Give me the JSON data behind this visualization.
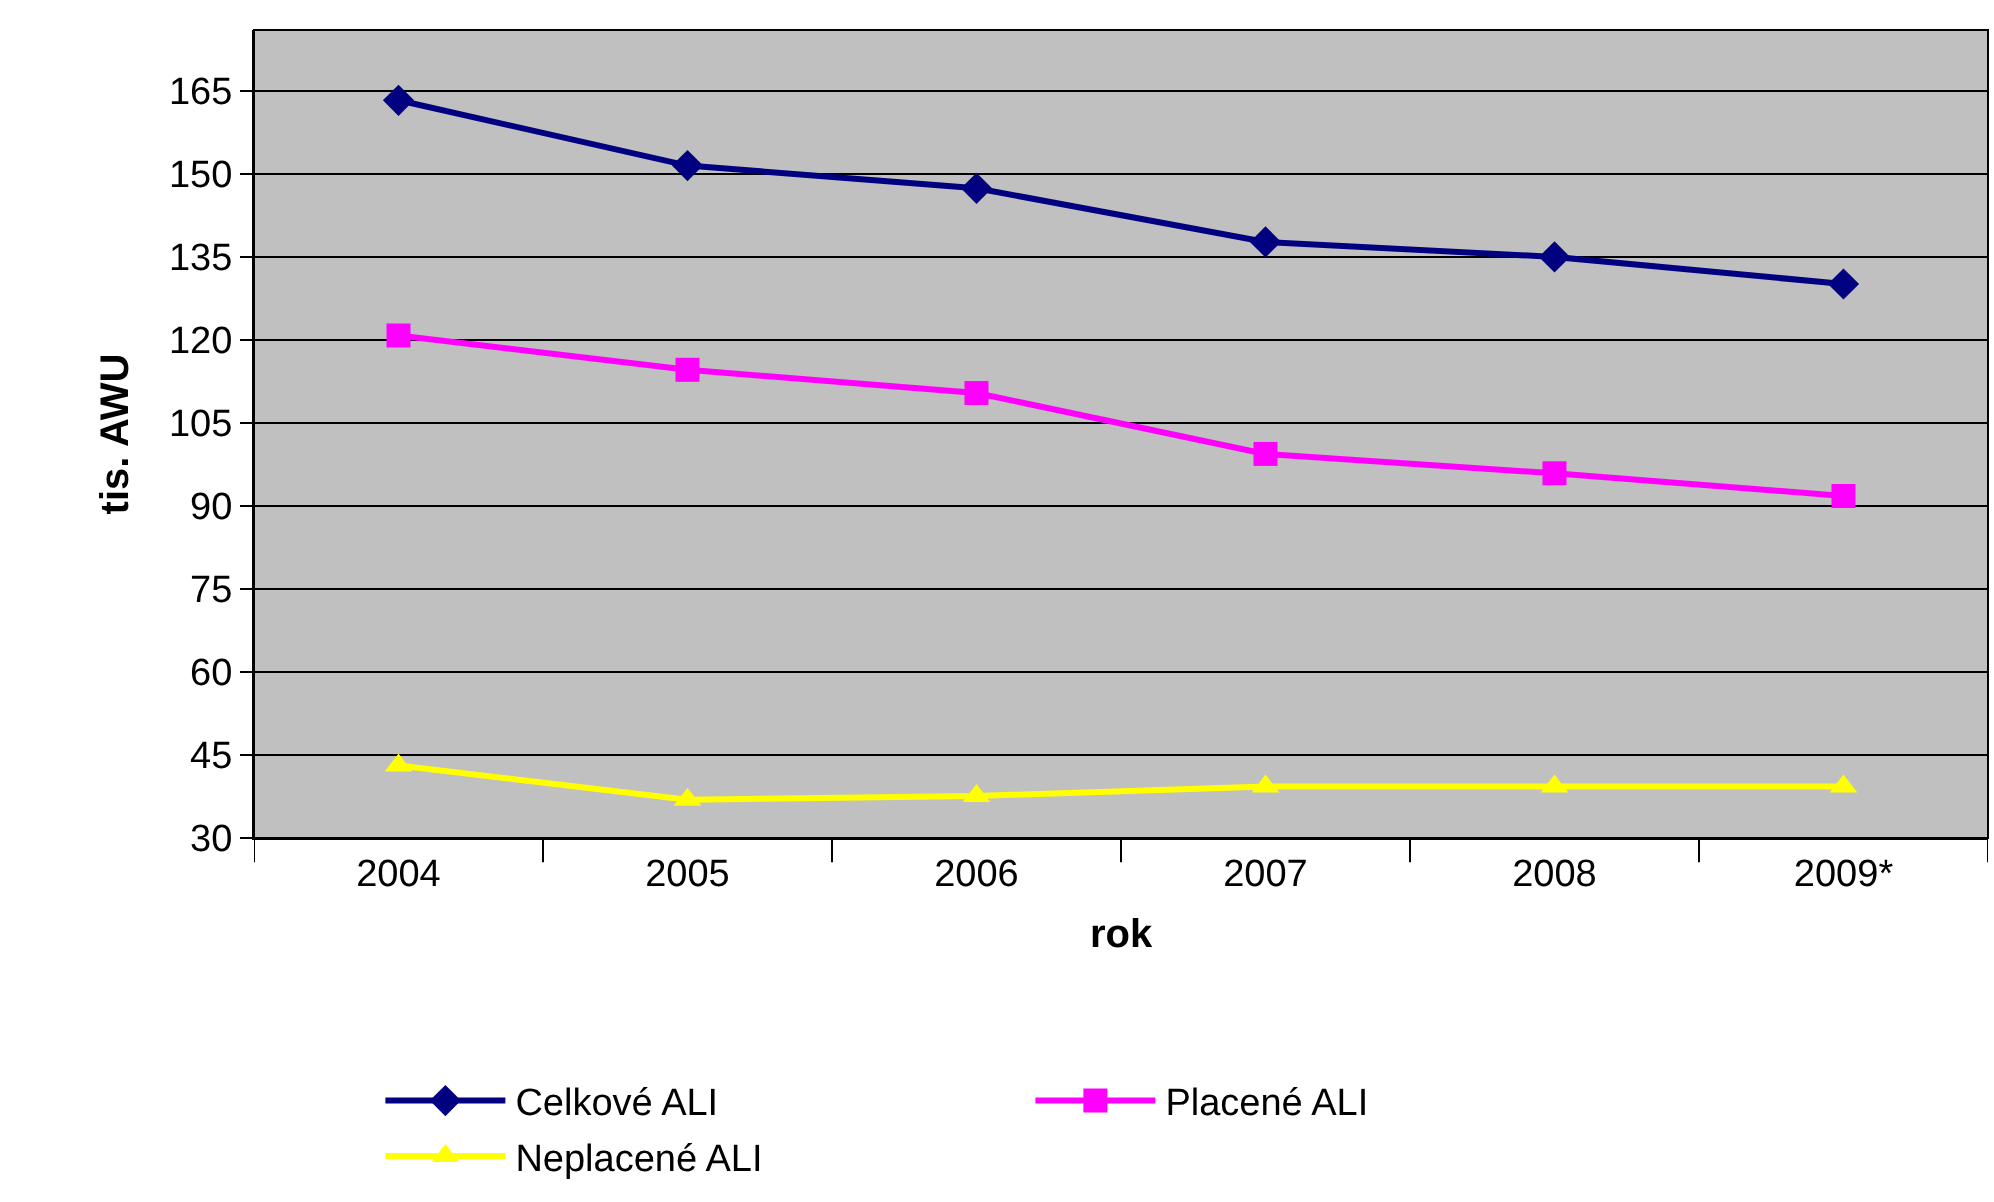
{
  "chart_data": {
    "type": "line",
    "xlabel": "rok",
    "ylabel": "tis. AWU",
    "categories": [
      "2004",
      "2005",
      "2006",
      "2007",
      "2008",
      "2009*"
    ],
    "series": [
      {
        "name": "Celkové ALI",
        "color": "#000080",
        "marker": "diamond",
        "values": [
          163.3,
          151.5,
          147.4,
          137.7,
          135.0,
          130.1
        ]
      },
      {
        "name": "Placené ALI",
        "color": "#ff00ff",
        "marker": "square",
        "values": [
          120.8,
          114.6,
          110.4,
          99.4,
          95.9,
          91.8
        ]
      },
      {
        "name": "Neplacené ALI",
        "color": "#ffff00",
        "marker": "triangle",
        "values": [
          43.1,
          36.9,
          37.6,
          39.3,
          39.3,
          39.3
        ]
      }
    ],
    "ylim": [
      30,
      176
    ],
    "yticks": [
      30,
      45,
      60,
      75,
      90,
      105,
      120,
      135,
      150,
      165
    ],
    "grid": "y",
    "legend": "bottom",
    "line_style": "solid"
  }
}
